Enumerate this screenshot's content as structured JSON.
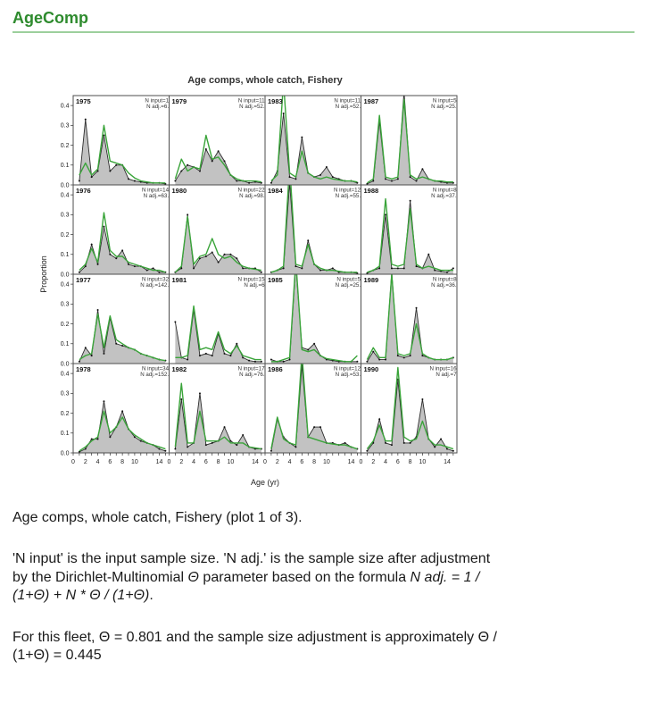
{
  "page": {
    "title": "AgeComp"
  },
  "captions": {
    "line1": "Age comps, whole catch, Fishery (plot 1 of 3).",
    "p2_s1": "'N input' is the input sample size. 'N adj.' is the sample size after adjustment by the Dirichlet-Multinomial ",
    "p2_theta": "Θ",
    "p2_s2": " parameter based on the formula ",
    "p2_formula": "N adj. = 1 / (1+Θ) + N * Θ / (1+Θ)",
    "p2_s3": ".",
    "p3": "For this fleet, Θ = 0.801 and the sample size adjustment is approximately Θ / (1+Θ) = 0.445"
  },
  "chart_data": {
    "type": "area",
    "layout": "4x4 small multiples, row-major",
    "title": "Age comps, whole catch, Fishery",
    "xlabel": "Age (yr)",
    "ylabel": "Proportion",
    "x_ages": [
      1,
      2,
      3,
      4,
      5,
      6,
      7,
      8,
      9,
      10,
      11,
      12,
      13,
      14,
      15
    ],
    "xlim": [
      0,
      15.6
    ],
    "ylim": [
      0,
      0.45
    ],
    "xticks": [
      0,
      2,
      4,
      6,
      8,
      10,
      14
    ],
    "yticks": [
      0,
      0.1,
      0.2,
      0.3,
      0.4
    ],
    "grid": false,
    "legend": "none (gray filled polygon with black points = observed, green line = expected)",
    "colors": {
      "observed_fill": "#c2c2c2",
      "observed_line": "#2e2e2e",
      "expected_line": "#3aa43a",
      "panel_border": "#4d4d4d",
      "header_green": "#2e8b2e",
      "divider_green": "#9ccf9c"
    },
    "panels": [
      {
        "year": "1975",
        "n_input": "N input=13",
        "n_adj": "N adj.=6.3",
        "observed": [
          0.02,
          0.33,
          0.04,
          0.07,
          0.25,
          0.07,
          0.1,
          0.1,
          0.03,
          0.02,
          0.015,
          0.01,
          0.01,
          0.01,
          0.005
        ],
        "expected": [
          0.05,
          0.11,
          0.05,
          0.08,
          0.3,
          0.12,
          0.11,
          0.1,
          0.06,
          0.035,
          0.02,
          0.015,
          0.01,
          0.01,
          0.01
        ]
      },
      {
        "year": "1979",
        "n_input": "N input=116",
        "n_adj": "N adj.=52.1",
        "observed": [
          0.02,
          0.07,
          0.1,
          0.09,
          0.07,
          0.18,
          0.12,
          0.17,
          0.12,
          0.05,
          0.02,
          0.02,
          0.01,
          0.015,
          0.01
        ],
        "expected": [
          0.03,
          0.13,
          0.07,
          0.09,
          0.08,
          0.25,
          0.13,
          0.14,
          0.1,
          0.05,
          0.03,
          0.02,
          0.02,
          0.02,
          0.015
        ]
      },
      {
        "year": "1983",
        "n_input": "N input=117",
        "n_adj": "N adj.=52.6",
        "observed": [
          0.01,
          0.07,
          0.36,
          0.04,
          0.03,
          0.24,
          0.06,
          0.04,
          0.05,
          0.09,
          0.04,
          0.03,
          0.02,
          0.02,
          0.01
        ],
        "expected": [
          0.02,
          0.05,
          0.52,
          0.06,
          0.04,
          0.17,
          0.06,
          0.04,
          0.03,
          0.04,
          0.03,
          0.025,
          0.02,
          0.02,
          0.015
        ]
      },
      {
        "year": "1987",
        "n_input": "N input=56",
        "n_adj": "N adj.=25.5",
        "observed": [
          0.005,
          0.02,
          0.32,
          0.03,
          0.02,
          0.03,
          0.47,
          0.04,
          0.02,
          0.08,
          0.03,
          0.02,
          0.015,
          0.01,
          0.01
        ],
        "expected": [
          0.01,
          0.03,
          0.35,
          0.04,
          0.03,
          0.04,
          0.43,
          0.05,
          0.03,
          0.04,
          0.03,
          0.02,
          0.02,
          0.015,
          0.015
        ]
      },
      {
        "year": "1976",
        "n_input": "N input=142",
        "n_adj": "N adj.=63.7",
        "observed": [
          0.01,
          0.04,
          0.15,
          0.05,
          0.24,
          0.1,
          0.08,
          0.12,
          0.05,
          0.04,
          0.04,
          0.02,
          0.03,
          0.01,
          0.01
        ],
        "expected": [
          0.02,
          0.05,
          0.13,
          0.06,
          0.31,
          0.12,
          0.09,
          0.09,
          0.06,
          0.05,
          0.04,
          0.03,
          0.02,
          0.02,
          0.01
        ]
      },
      {
        "year": "1980",
        "n_input": "N input=221",
        "n_adj": "N adj.=98.8",
        "observed": [
          0.01,
          0.03,
          0.3,
          0.03,
          0.08,
          0.09,
          0.11,
          0.06,
          0.1,
          0.1,
          0.08,
          0.03,
          0.03,
          0.03,
          0.01
        ],
        "expected": [
          0.01,
          0.04,
          0.29,
          0.05,
          0.09,
          0.1,
          0.18,
          0.1,
          0.08,
          0.09,
          0.06,
          0.04,
          0.03,
          0.025,
          0.02
        ]
      },
      {
        "year": "1984",
        "n_input": "N input=123",
        "n_adj": "N adj.=55.3",
        "observed": [
          0.01,
          0.02,
          0.03,
          0.46,
          0.04,
          0.03,
          0.17,
          0.05,
          0.02,
          0.02,
          0.03,
          0.01,
          0.01,
          0.01,
          0.005
        ],
        "expected": [
          0.01,
          0.02,
          0.04,
          0.55,
          0.05,
          0.04,
          0.15,
          0.05,
          0.03,
          0.02,
          0.02,
          0.015,
          0.01,
          0.01,
          0.01
        ]
      },
      {
        "year": "1988",
        "n_input": "N input=84",
        "n_adj": "N adj.=37.9",
        "observed": [
          0.005,
          0.02,
          0.03,
          0.3,
          0.03,
          0.03,
          0.03,
          0.37,
          0.04,
          0.03,
          0.1,
          0.02,
          0.015,
          0.01,
          0.03
        ],
        "expected": [
          0.01,
          0.02,
          0.04,
          0.38,
          0.05,
          0.04,
          0.05,
          0.33,
          0.05,
          0.03,
          0.04,
          0.03,
          0.02,
          0.02,
          0.02
        ]
      },
      {
        "year": "1977",
        "n_input": "N input=320",
        "n_adj": "N adj.=142.9",
        "observed": [
          0.01,
          0.08,
          0.04,
          0.27,
          0.05,
          0.23,
          0.1,
          0.09,
          0.08,
          0.07,
          0.05,
          0.04,
          0.03,
          0.02,
          0.015
        ],
        "expected": [
          0.02,
          0.04,
          0.05,
          0.25,
          0.08,
          0.24,
          0.12,
          0.1,
          0.08,
          0.07,
          0.05,
          0.04,
          0.03,
          0.02,
          0.015
        ]
      },
      {
        "year": "1981",
        "n_input": "N input=154",
        "n_adj": "N adj.=69",
        "observed": [
          0.21,
          0.03,
          0.02,
          0.27,
          0.04,
          0.05,
          0.04,
          0.15,
          0.05,
          0.04,
          0.1,
          0.03,
          0.015,
          0.01,
          0.01
        ],
        "expected": [
          0.03,
          0.03,
          0.04,
          0.29,
          0.07,
          0.08,
          0.07,
          0.16,
          0.07,
          0.05,
          0.09,
          0.04,
          0.03,
          0.02,
          0.02
        ]
      },
      {
        "year": "1985",
        "n_input": "N input=57",
        "n_adj": "N adj.=25.9",
        "observed": [
          0.02,
          0.01,
          0.01,
          0.02,
          0.5,
          0.08,
          0.07,
          0.1,
          0.04,
          0.02,
          0.015,
          0.01,
          0.01,
          0.01,
          0.01
        ],
        "expected": [
          0.01,
          0.01,
          0.02,
          0.03,
          0.52,
          0.07,
          0.06,
          0.07,
          0.04,
          0.025,
          0.02,
          0.015,
          0.01,
          0.01,
          0.04
        ]
      },
      {
        "year": "1989",
        "n_input": "N input=80",
        "n_adj": "N adj.=36.1",
        "observed": [
          0.01,
          0.06,
          0.02,
          0.02,
          0.46,
          0.04,
          0.03,
          0.04,
          0.28,
          0.04,
          0.03,
          0.02,
          0.02,
          0.02,
          0.03
        ],
        "expected": [
          0.02,
          0.08,
          0.03,
          0.03,
          0.45,
          0.05,
          0.04,
          0.05,
          0.2,
          0.05,
          0.03,
          0.02,
          0.02,
          0.02,
          0.03
        ]
      },
      {
        "year": "1978",
        "n_input": "N input=341",
        "n_adj": "N adj.=152.2",
        "observed": [
          0.005,
          0.02,
          0.07,
          0.07,
          0.26,
          0.08,
          0.13,
          0.21,
          0.12,
          0.08,
          0.06,
          0.05,
          0.04,
          0.02,
          0.01
        ],
        "expected": [
          0.01,
          0.03,
          0.06,
          0.08,
          0.21,
          0.1,
          0.13,
          0.18,
          0.12,
          0.09,
          0.07,
          0.05,
          0.04,
          0.03,
          0.02
        ]
      },
      {
        "year": "1982",
        "n_input": "N input=170",
        "n_adj": "N adj.=76.2",
        "observed": [
          0.02,
          0.27,
          0.03,
          0.05,
          0.3,
          0.04,
          0.05,
          0.06,
          0.13,
          0.06,
          0.04,
          0.09,
          0.03,
          0.02,
          0.02
        ],
        "expected": [
          0.03,
          0.35,
          0.05,
          0.05,
          0.21,
          0.06,
          0.06,
          0.06,
          0.08,
          0.05,
          0.05,
          0.05,
          0.03,
          0.025,
          0.02
        ]
      },
      {
        "year": "1986",
        "n_input": "N input=120",
        "n_adj": "N adj.=53.9",
        "observed": [
          0.01,
          0.17,
          0.08,
          0.05,
          0.03,
          0.44,
          0.08,
          0.13,
          0.13,
          0.05,
          0.05,
          0.04,
          0.05,
          0.03,
          0.02
        ],
        "expected": [
          0.02,
          0.18,
          0.07,
          0.05,
          0.04,
          0.5,
          0.08,
          0.07,
          0.06,
          0.05,
          0.045,
          0.04,
          0.04,
          0.03,
          0.02
        ]
      },
      {
        "year": "1990",
        "n_input": "N input=163",
        "n_adj": "N adj.=73",
        "observed": [
          0.01,
          0.05,
          0.17,
          0.05,
          0.04,
          0.37,
          0.05,
          0.05,
          0.08,
          0.27,
          0.07,
          0.03,
          0.07,
          0.02,
          0.01
        ],
        "expected": [
          0.02,
          0.06,
          0.14,
          0.06,
          0.06,
          0.43,
          0.08,
          0.06,
          0.07,
          0.16,
          0.07,
          0.04,
          0.04,
          0.03,
          0.02
        ]
      }
    ]
  }
}
